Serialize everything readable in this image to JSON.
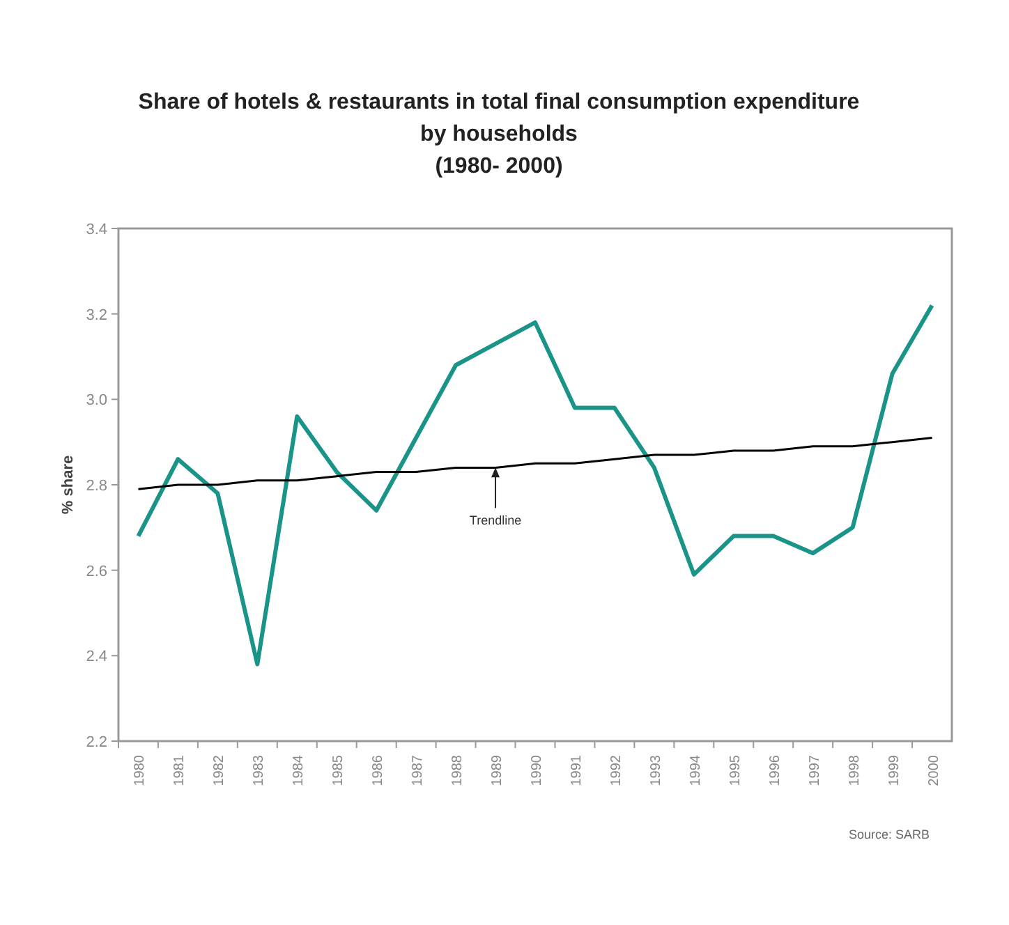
{
  "chart_data": {
    "type": "line",
    "title": "Share of hotels & restaurants in total final consumption expenditure\nby households\n(1980- 2000)",
    "ylabel": "% share",
    "categories": [
      "1980",
      "1981",
      "1982",
      "1983",
      "1984",
      "1985",
      "1986",
      "1987",
      "1988",
      "1989",
      "1990",
      "1991",
      "1992",
      "1993",
      "1994",
      "1995",
      "1996",
      "1997",
      "1998",
      "1999",
      "2000"
    ],
    "series": [
      {
        "color": "#1a9488",
        "values": [
          2.68,
          2.86,
          2.78,
          2.38,
          2.96,
          2.83,
          2.74,
          2.91,
          3.08,
          3.13,
          3.18,
          2.98,
          2.98,
          2.84,
          2.59,
          2.68,
          2.68,
          2.64,
          2.7,
          3.06,
          3.22
        ]
      },
      {
        "type": "line",
        "color": "#000000",
        "values": [
          2.79,
          2.8,
          2.8,
          2.81,
          2.81,
          2.82,
          2.83,
          2.83,
          2.84,
          2.84,
          2.85,
          2.85,
          2.86,
          2.87,
          2.87,
          2.88,
          2.88,
          2.89,
          2.89,
          2.9,
          2.91
        ]
      }
    ],
    "ylim": [
      2.2,
      3.4
    ],
    "yticks": [
      {
        "value": 2.2,
        "label": "2.2"
      },
      {
        "value": 2.4,
        "label": "2.4"
      },
      {
        "value": 2.6,
        "label": "2.6"
      },
      {
        "value": 2.8,
        "label": "2.8"
      },
      {
        "value": 3.0,
        "label": "3.0"
      },
      {
        "value": 3.2,
        "label": "3.2"
      },
      {
        "value": 3.4,
        "label": "3.4"
      }
    ],
    "annotations": [
      {
        "text": "Trendline",
        "x": "1989",
        "y": 2.85
      },
      "Source: SARB"
    ],
    "grid": false,
    "marker": "none",
    "line_style": "solid"
  }
}
